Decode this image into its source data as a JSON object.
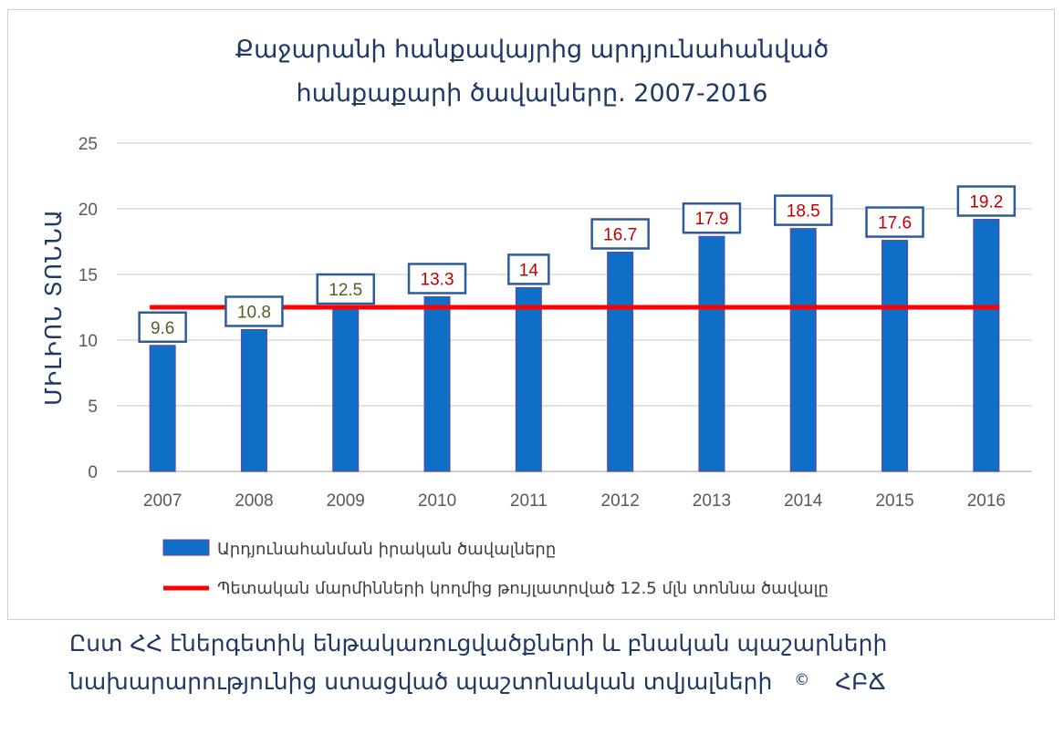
{
  "chart_data": {
    "type": "bar",
    "title_line1": "Քաջարանի հանքավայրից արդյունահանված",
    "title_line2": "հանքաքարի ծավալները.  2007-2016",
    "ylabel": "ՄԻԼԻՈՆ ՏՈՆՆԱ",
    "xlabel": "",
    "ylim": [
      0,
      25
    ],
    "yticks": [
      "0",
      "5",
      "10",
      "15",
      "20",
      "25"
    ],
    "categories": [
      "2007",
      "2008",
      "2009",
      "2010",
      "2011",
      "2012",
      "2013",
      "2014",
      "2015",
      "2016"
    ],
    "series": [
      {
        "name": "Արդյունահանման իրական ծավալները",
        "values": [
          9.6,
          10.8,
          12.5,
          13.3,
          14,
          16.7,
          17.9,
          18.5,
          17.6,
          19.2
        ],
        "labels": [
          "9.6",
          "10.8",
          "12.5",
          "13.3",
          "14",
          "16.7",
          "17.9",
          "18.5",
          "17.6",
          "19.2"
        ],
        "color": "#0f6fc6"
      },
      {
        "name": "Պետական մարմինների կողմից թույլատրված 12.5 մլն տոննա ծավալը",
        "value": 12.5,
        "color": "#ff0000"
      }
    ],
    "grid": true,
    "legend_position": "bottom-left",
    "label_color_below": "#4f6228",
    "label_color_above": "#c00000",
    "label_border": "#2e5c9a"
  },
  "source": {
    "line1": "Ըստ ՀՀ էներգետիկ ենթակառուցվածքների և բնական պաշարների",
    "line2": "նախարարությունից ստացված պաշտոնական տվյալների",
    "copyright": "©",
    "signature": "ՀԲՃ"
  }
}
